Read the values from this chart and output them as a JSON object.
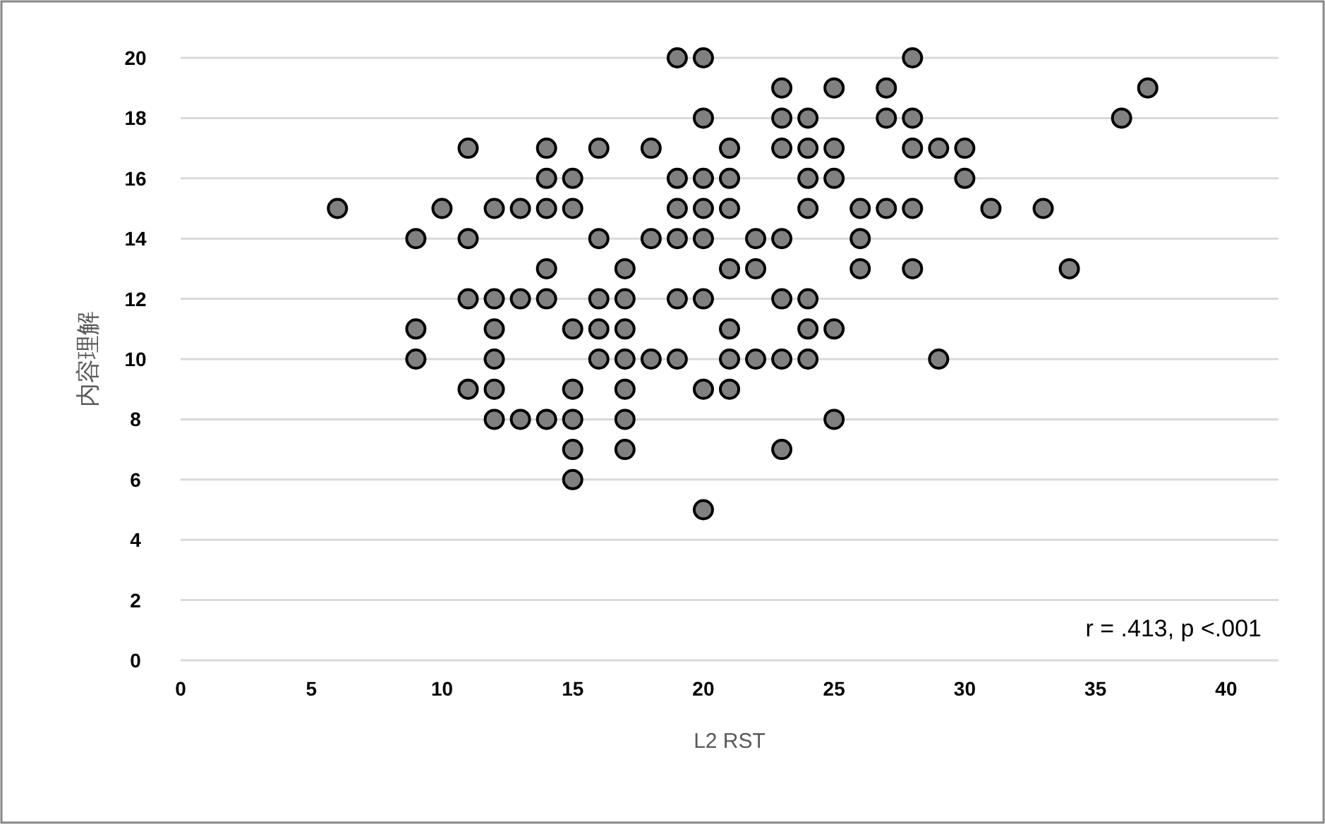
{
  "chart_data": {
    "type": "scatter",
    "xlabel": "L2 RST",
    "ylabel": "内容理解",
    "xlim": [
      0,
      42
    ],
    "xticks": [
      0,
      5,
      10,
      15,
      20,
      25,
      30,
      35,
      40
    ],
    "ylim": [
      0,
      20
    ],
    "yticks": [
      0,
      2,
      4,
      6,
      8,
      10,
      12,
      14,
      16,
      18,
      20
    ],
    "grid": "y",
    "marker": "circle",
    "annotations": [
      "r = .413, p <.001"
    ],
    "series": [
      {
        "color": "#808080",
        "x": [
          19,
          20,
          28,
          23,
          25,
          27,
          37,
          20,
          23,
          24,
          27,
          28,
          36,
          11,
          14,
          16,
          18,
          21,
          23,
          24,
          25,
          28,
          29,
          30,
          14,
          15,
          19,
          20,
          21,
          24,
          25,
          30,
          6,
          10,
          12,
          13,
          14,
          15,
          19,
          20,
          21,
          24,
          26,
          27,
          28,
          31,
          33,
          9,
          11,
          16,
          18,
          19,
          20,
          22,
          23,
          26,
          14,
          17,
          21,
          22,
          26,
          28,
          34,
          11,
          12,
          13,
          14,
          16,
          17,
          19,
          20,
          23,
          24,
          9,
          12,
          15,
          16,
          17,
          21,
          24,
          25,
          9,
          12,
          16,
          17,
          18,
          19,
          21,
          22,
          23,
          24,
          29,
          11,
          12,
          15,
          17,
          20,
          21,
          12,
          13,
          14,
          15,
          17,
          25,
          15,
          17,
          23,
          15,
          20
        ],
        "values": [
          20,
          20,
          20,
          19,
          19,
          19,
          19,
          18,
          18,
          18,
          18,
          18,
          18,
          17,
          17,
          17,
          17,
          17,
          17,
          17,
          17,
          17,
          17,
          17,
          16,
          16,
          16,
          16,
          16,
          16,
          16,
          16,
          15,
          15,
          15,
          15,
          15,
          15,
          15,
          15,
          15,
          15,
          15,
          15,
          15,
          15,
          15,
          14,
          14,
          14,
          14,
          14,
          14,
          14,
          14,
          14,
          13,
          13,
          13,
          13,
          13,
          13,
          13,
          12,
          12,
          12,
          12,
          12,
          12,
          12,
          12,
          12,
          12,
          11,
          11,
          11,
          11,
          11,
          11,
          11,
          11,
          10,
          10,
          10,
          10,
          10,
          10,
          10,
          10,
          10,
          10,
          10,
          9,
          9,
          9,
          9,
          9,
          9,
          8,
          8,
          8,
          8,
          8,
          8,
          7,
          7,
          7,
          6,
          5
        ]
      }
    ]
  }
}
